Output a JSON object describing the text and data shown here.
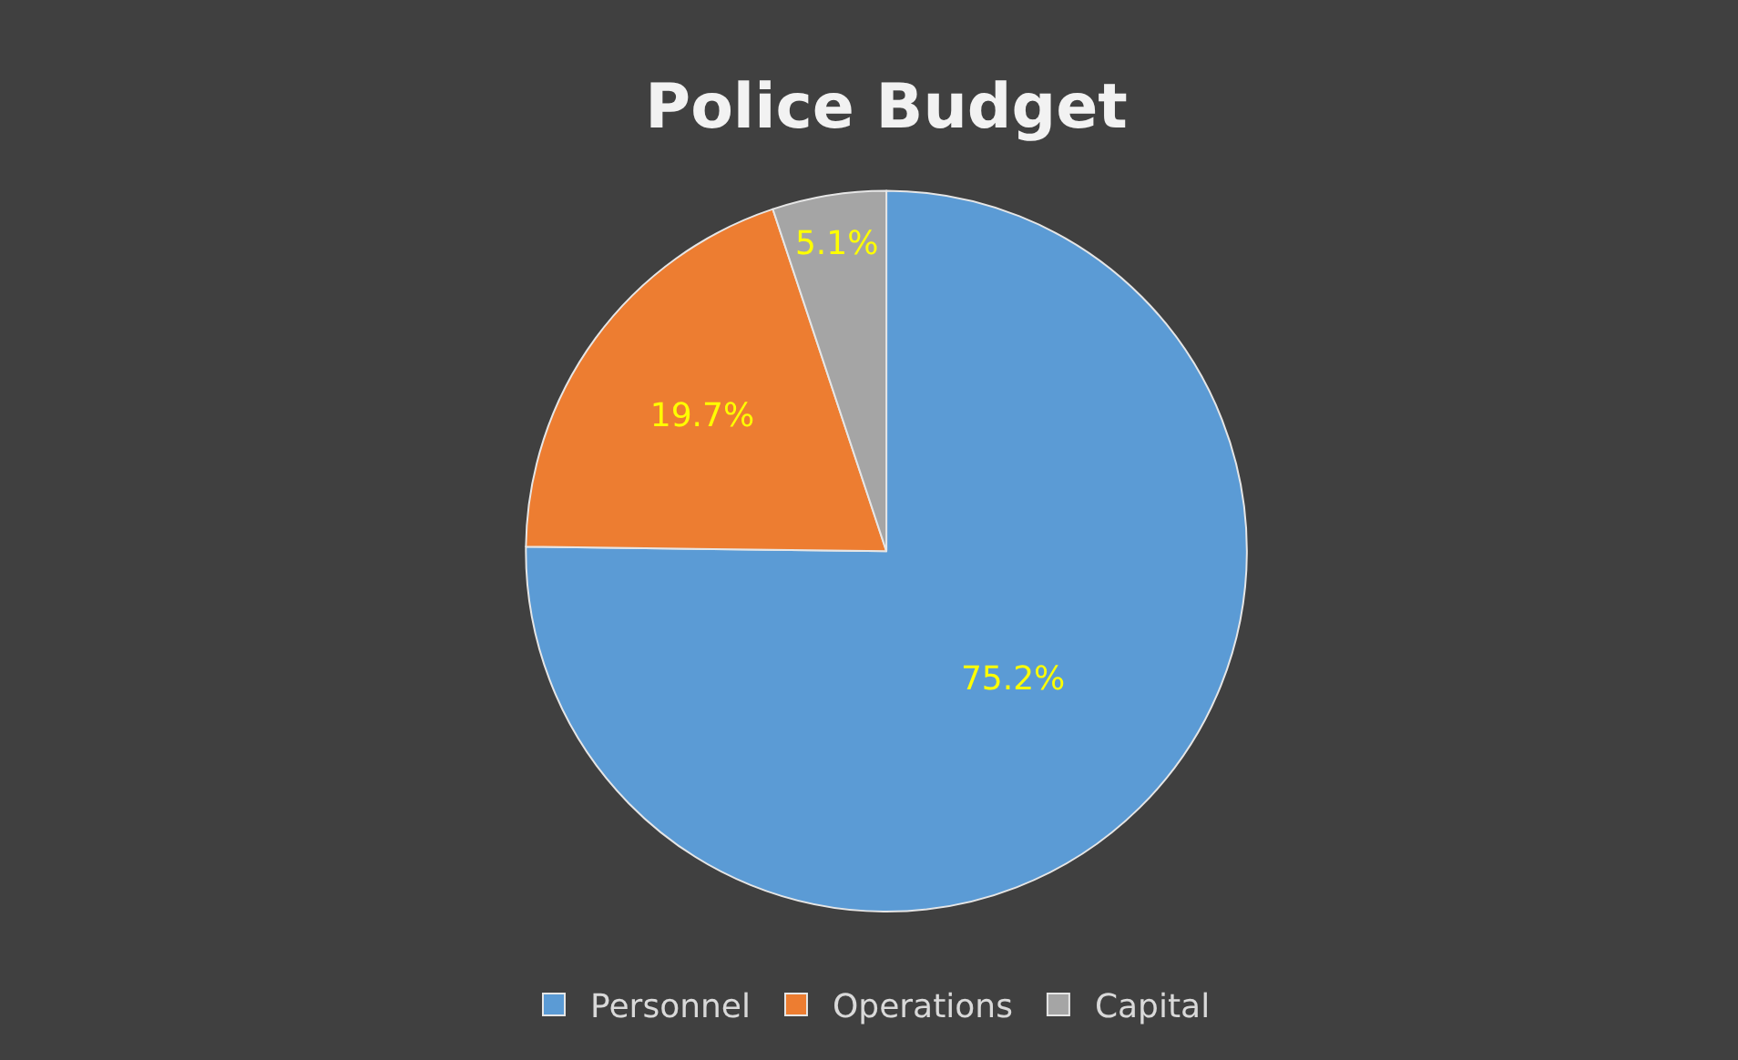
{
  "chart_data": {
    "type": "pie",
    "title": "Police Budget",
    "categories": [
      "Personnel",
      "Operations",
      "Capital"
    ],
    "values": [
      75.2,
      19.7,
      5.1
    ],
    "colors": [
      "#5b9bd5",
      "#ed7d31",
      "#a5a5a5"
    ],
    "value_labels": [
      "75.2%",
      "19.7%",
      "5.1%"
    ],
    "legend": "bottom"
  }
}
